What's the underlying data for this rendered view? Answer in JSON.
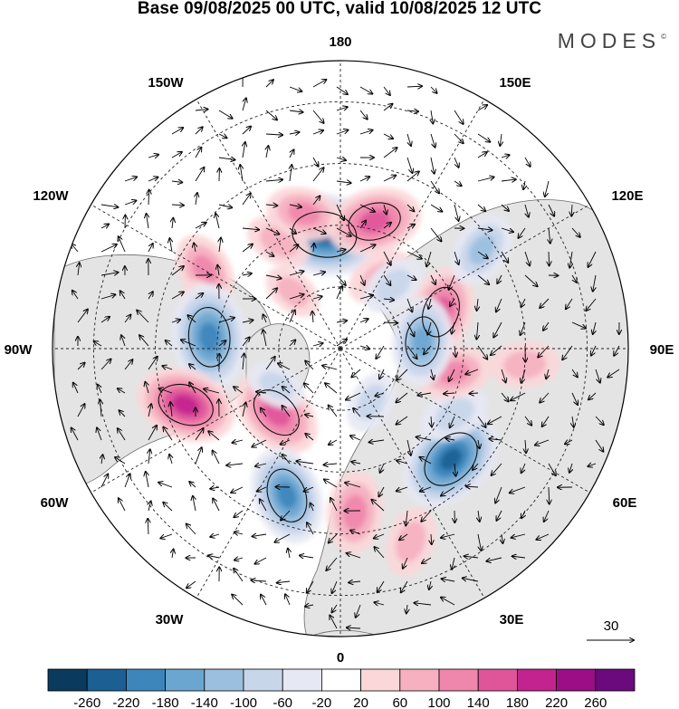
{
  "title": "Base 09/08/2025 00 UTC, valid 10/08/2025 12 UTC",
  "brand": "MODES",
  "brand_mark": "©",
  "longitude_labels": {
    "top": "180",
    "upper_left": "150W",
    "upper_right": "150E",
    "mid_upper_left": "120W",
    "mid_upper_right": "120E",
    "left": "90W",
    "right": "90E",
    "mid_lower_left": "60W",
    "mid_lower_right": "60E",
    "lower_left": "30W",
    "lower_right": "30E",
    "bottom": "0"
  },
  "vector_reference": {
    "value": "30"
  },
  "colorbar": {
    "ticks": [
      "-260",
      "-220",
      "-180",
      "-140",
      "-100",
      "-60",
      "-20",
      "20",
      "60",
      "100",
      "140",
      "180",
      "220",
      "260"
    ],
    "colors": [
      "#0b3a5f",
      "#1c5f93",
      "#3c86bc",
      "#6aa6d0",
      "#9bbfde",
      "#c8d6ea",
      "#e6e8f3",
      "#ffffff",
      "#fbd7d9",
      "#f6b0c0",
      "#ef86ab",
      "#e0549a",
      "#c3238e",
      "#9c0e86",
      "#6a0a7c"
    ]
  },
  "anomalies": [
    {
      "lon": -172,
      "lat": 62,
      "value": -240
    },
    {
      "lon": -150,
      "lat": 60,
      "value": 80
    },
    {
      "lon": -165,
      "lat": 56,
      "value": 110
    },
    {
      "lon": 165,
      "lat": 58,
      "value": 170
    },
    {
      "lon": 150,
      "lat": 70,
      "value": 90
    },
    {
      "lon": -120,
      "lat": 52,
      "value": 110
    },
    {
      "lon": -105,
      "lat": 55,
      "value": 70
    },
    {
      "lon": -95,
      "lat": 58,
      "value": -210
    },
    {
      "lon": -70,
      "lat": 50,
      "value": 190
    },
    {
      "lon": -45,
      "lat": 68,
      "value": 170
    },
    {
      "lon": -60,
      "lat": 72,
      "value": -60
    },
    {
      "lon": -20,
      "lat": 52,
      "value": -180
    },
    {
      "lon": 5,
      "lat": 50,
      "value": 130
    },
    {
      "lon": 20,
      "lat": 40,
      "value": 90
    },
    {
      "lon": 45,
      "lat": 52,
      "value": -220
    },
    {
      "lon": 60,
      "lat": 58,
      "value": -90
    },
    {
      "lon": 85,
      "lat": 45,
      "value": 90
    },
    {
      "lon": 78,
      "lat": 62,
      "value": 110
    },
    {
      "lon": 110,
      "lat": 64,
      "value": 160
    },
    {
      "lon": 95,
      "lat": 70,
      "value": -150
    },
    {
      "lon": 125,
      "lat": 48,
      "value": -110
    },
    {
      "lon": 140,
      "lat": 70,
      "value": -80
    },
    {
      "lon": 30,
      "lat": 75,
      "value": -70
    },
    {
      "lon": -140,
      "lat": 72,
      "value": 60
    }
  ],
  "wind_vector_arrows": "uniform grid of wind vectors"
}
